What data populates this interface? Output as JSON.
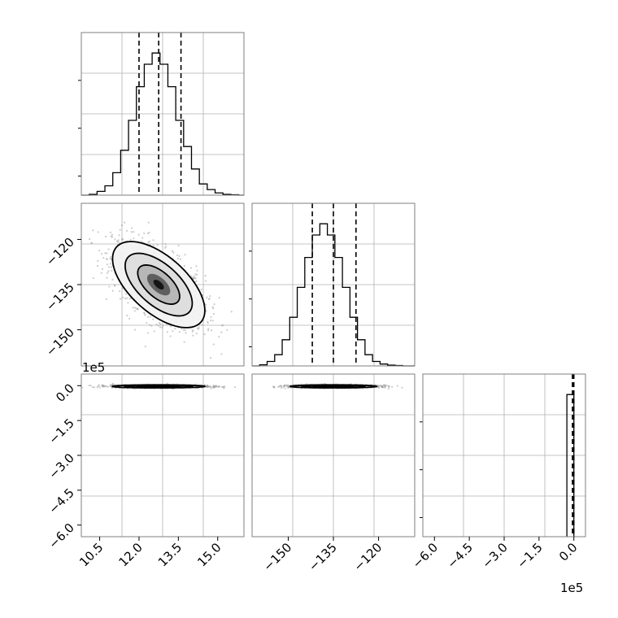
{
  "chart_data": {
    "type": "corner",
    "colors": {
      "line": "#000000",
      "grid": "#b0b0b0",
      "frame": "#7f7f7f",
      "scatter": "#9a9a9a"
    },
    "panels": [
      {
        "name": "hist-param-1",
        "type": "histogram",
        "x_range": [
          9.8,
          16.0
        ],
        "bin_edges": [
          9.8,
          10.1,
          10.4,
          10.7,
          11.0,
          11.3,
          11.6,
          11.9,
          12.2,
          12.5,
          12.8,
          13.1,
          13.4,
          13.7,
          14.0,
          14.3,
          14.6,
          14.9,
          15.2,
          15.5,
          15.8,
          16.0
        ],
        "counts": [
          0,
          2,
          10,
          25,
          60,
          120,
          200,
          290,
          350,
          380,
          350,
          290,
          200,
          130,
          70,
          30,
          15,
          6,
          2,
          1,
          0
        ],
        "y_max": 400,
        "quantiles": [
          12.0,
          12.75,
          13.6
        ],
        "grid": true
      },
      {
        "name": "hist-param-2",
        "type": "histogram",
        "x_range": [
          -162,
          -108
        ],
        "bin_edges": [
          -162,
          -159.5,
          -157,
          -154.5,
          -152,
          -149.5,
          -147,
          -144.5,
          -142,
          -139.5,
          -137,
          -134.5,
          -132,
          -129.5,
          -127,
          -124.5,
          -122,
          -119.5,
          -117,
          -114.5,
          -112,
          -108
        ],
        "counts": [
          0,
          3,
          12,
          30,
          70,
          130,
          210,
          290,
          350,
          380,
          350,
          290,
          210,
          130,
          70,
          30,
          12,
          5,
          2,
          1,
          0
        ],
        "y_max": 400,
        "quantiles": [
          -142.0,
          -135.0,
          -127.5
        ],
        "grid": true
      },
      {
        "name": "hist-param-3",
        "type": "histogram",
        "x_range": [
          -6.5,
          0.5
        ],
        "bin_edges": [
          -0.3,
          -0.1,
          0.0
        ],
        "counts": [
          380,
          380
        ],
        "y_max": 400,
        "quantiles": [
          -0.06,
          -0.03,
          0.0
        ],
        "offset_label": "1e5",
        "x_ticks": [
          -6.0,
          -4.5,
          -3.0,
          -1.5,
          0.0
        ],
        "x_tick_labels": [
          "−6.0",
          "−4.5",
          "−3.0",
          "−1.5",
          "0.0"
        ],
        "grid": true
      },
      {
        "name": "corr-1-2",
        "type": "contour-scatter",
        "x_range": [
          9.8,
          16.0
        ],
        "y_range": [
          -162,
          -108
        ],
        "center": [
          12.75,
          -135
        ],
        "sd": [
          0.8,
          6.5
        ],
        "rho": -0.6,
        "y_ticks": [
          -120,
          -135,
          -150
        ],
        "y_tick_labels": [
          "−120",
          "−135",
          "−150"
        ],
        "grid": true
      },
      {
        "name": "corr-1-3",
        "type": "contour-scatter",
        "x_range": [
          9.8,
          16.0
        ],
        "y_range": [
          -6.5,
          0.5
        ],
        "center": [
          12.75,
          -0.03
        ],
        "sd": [
          0.8,
          0.03
        ],
        "rho": 0.0,
        "offset_label": "1e5",
        "x_ticks": [
          10.5,
          12.0,
          13.5,
          15.0
        ],
        "x_tick_labels": [
          "10.5",
          "12.0",
          "13.5",
          "15.0"
        ],
        "y_ticks": [
          0.0,
          -1.5,
          -3.0,
          -4.5,
          -6.0
        ],
        "y_tick_labels": [
          "0.0",
          "−1.5",
          "−3.0",
          "−4.5",
          "−6.0"
        ],
        "grid": true
      },
      {
        "name": "corr-2-3",
        "type": "contour-scatter",
        "x_range": [
          -162,
          -108
        ],
        "y_range": [
          -6.5,
          0.5
        ],
        "center": [
          -135,
          -0.03
        ],
        "sd": [
          6.5,
          0.03
        ],
        "rho": 0.0,
        "x_ticks": [
          -150,
          -135,
          -120
        ],
        "x_tick_labels": [
          "−150",
          "−135",
          "−120"
        ],
        "grid": true
      }
    ]
  }
}
